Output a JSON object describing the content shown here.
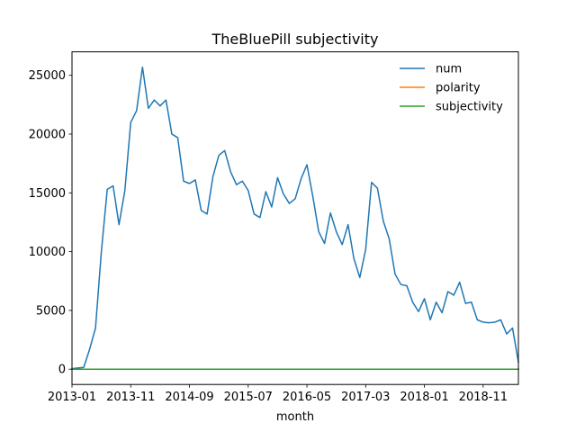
{
  "chart_data": {
    "type": "line",
    "title": "TheBluePill subjectivity",
    "xlabel": "month",
    "ylabel": "",
    "x_start": "2013-01",
    "x_tick_labels": [
      "2013-01",
      "2013-11",
      "2014-09",
      "2015-07",
      "2016-05",
      "2017-03",
      "2018-01",
      "2018-11"
    ],
    "x_tick_months": [
      0,
      10,
      20,
      30,
      40,
      50,
      60,
      70
    ],
    "xlim_months": [
      0,
      76
    ],
    "ylim": [
      -1300,
      27000
    ],
    "y_ticks": [
      0,
      5000,
      10000,
      15000,
      20000,
      25000
    ],
    "y_tick_labels": [
      "0",
      "5000",
      "10000",
      "15000",
      "20000",
      "25000"
    ],
    "grid": false,
    "legend_position": "upper right",
    "series": [
      {
        "name": "num",
        "color": "#1f77b4",
        "values": [
          50,
          100,
          150,
          1700,
          3500,
          10000,
          15300,
          15600,
          12300,
          15200,
          21000,
          22000,
          25700,
          22200,
          22900,
          22400,
          22900,
          20000,
          19700,
          16000,
          15800,
          16100,
          13500,
          13200,
          16400,
          18200,
          18600,
          16800,
          15700,
          16000,
          15200,
          13200,
          12900,
          15100,
          13800,
          16300,
          14900,
          14100,
          14500,
          16200,
          17400,
          14700,
          11700,
          10700,
          13300,
          11700,
          10600,
          12300,
          9400,
          7800,
          10200,
          15900,
          15400,
          12600,
          11100,
          8100,
          7200,
          7100,
          5700,
          4900,
          6000,
          4200,
          5700,
          4800,
          6600,
          6300,
          7400,
          5600,
          5700,
          4200,
          4000,
          3950,
          4000,
          4200,
          3000,
          3500,
          600
        ]
      },
      {
        "name": "polarity",
        "color": "#ff7f0e",
        "values": [
          0,
          0,
          0,
          0,
          0,
          0,
          0,
          0,
          0,
          0,
          0,
          0,
          0,
          0,
          0,
          0,
          0,
          0,
          0,
          0,
          0,
          0,
          0,
          0,
          0,
          0,
          0,
          0,
          0,
          0,
          0,
          0,
          0,
          0,
          0,
          0,
          0,
          0,
          0,
          0,
          0,
          0,
          0,
          0,
          0,
          0,
          0,
          0,
          0,
          0,
          0,
          0,
          0,
          0,
          0,
          0,
          0,
          0,
          0,
          0,
          0,
          0,
          0,
          0,
          0,
          0,
          0,
          0,
          0,
          0,
          0,
          0,
          0,
          0,
          0,
          0,
          0
        ]
      },
      {
        "name": "subjectivity",
        "color": "#2ca02c",
        "values": [
          0,
          0,
          0,
          0,
          0,
          0,
          0,
          0,
          0,
          0,
          0,
          0,
          0,
          0,
          0,
          0,
          0,
          0,
          0,
          0,
          0,
          0,
          0,
          0,
          0,
          0,
          0,
          0,
          0,
          0,
          0,
          0,
          0,
          0,
          0,
          0,
          0,
          0,
          0,
          0,
          0,
          0,
          0,
          0,
          0,
          0,
          0,
          0,
          0,
          0,
          0,
          0,
          0,
          0,
          0,
          0,
          0,
          0,
          0,
          0,
          0,
          0,
          0,
          0,
          0,
          0,
          0,
          0,
          0,
          0,
          0,
          0,
          0,
          0,
          0,
          0,
          0
        ]
      }
    ]
  }
}
